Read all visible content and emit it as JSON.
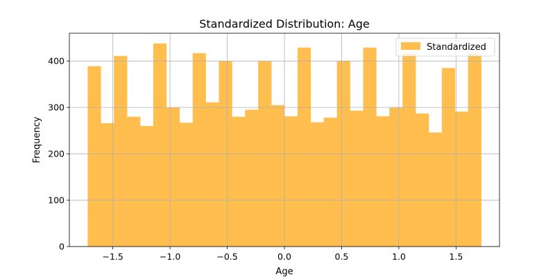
{
  "chart_data": {
    "type": "bar",
    "title": "Standardized Distribution: Age",
    "xlabel": "Age",
    "ylabel": "Frequency",
    "xlim": [
      -1.88,
      1.88
    ],
    "ylim": [
      0,
      460
    ],
    "x_ticks": [
      -1.5,
      -1.0,
      -0.5,
      0.0,
      0.5,
      1.0,
      1.5
    ],
    "x_tick_labels": [
      "−1.5",
      "−1.0",
      "−0.5",
      "0.0",
      "0.5",
      "1.0",
      "1.5"
    ],
    "y_ticks": [
      0,
      100,
      200,
      300,
      400
    ],
    "y_tick_labels": [
      "0",
      "100",
      "200",
      "300",
      "400"
    ],
    "grid": true,
    "legend": {
      "placement": "top-right",
      "entries": [
        "Standardized"
      ]
    },
    "color": "#ffbe4d",
    "bins": {
      "edges_start": -1.72,
      "edges_end": 1.72,
      "values": [
        389,
        266,
        411,
        280,
        260,
        438,
        300,
        267,
        417,
        311,
        400,
        280,
        295,
        400,
        305,
        281,
        429,
        268,
        278,
        400,
        293,
        429,
        281,
        300,
        416,
        287,
        246,
        385,
        291,
        416
      ]
    }
  }
}
